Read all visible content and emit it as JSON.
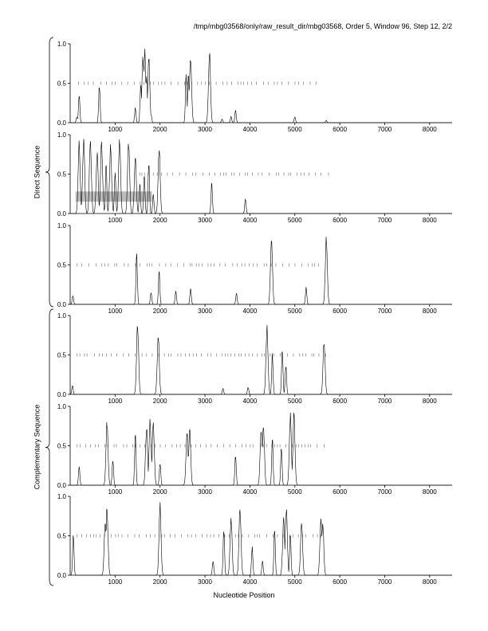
{
  "title": "/tmp/mbg03568/only/raw_result_dir/mbg03568, Order 5, Window 96, Step 12, 2/2",
  "xlabel": "Nucleotide Position",
  "group_labels": [
    "Direct Sequence",
    "Complementary Sequence"
  ],
  "chart_data": [
    {
      "type": "line",
      "panel": 1,
      "group": "Direct Sequence",
      "xlim": [
        0,
        8500
      ],
      "ylim": [
        0,
        1
      ],
      "xticks": [
        1000,
        2000,
        3000,
        4000,
        5000,
        6000,
        7000,
        8000
      ],
      "yticks": [
        "0.0",
        "0.5",
        "1.0"
      ],
      "peaks": [
        [
          150,
          0.08
        ],
        [
          200,
          0.38
        ],
        [
          650,
          0.5
        ],
        [
          1450,
          0.2
        ],
        [
          1570,
          0.55
        ],
        [
          1620,
          0.9
        ],
        [
          1660,
          0.95
        ],
        [
          1700,
          0.6
        ],
        [
          1750,
          0.85
        ],
        [
          1800,
          0.1
        ],
        [
          2580,
          0.65
        ],
        [
          2630,
          0.7
        ],
        [
          2680,
          0.9
        ],
        [
          3100,
          0.95
        ],
        [
          3380,
          0.05
        ],
        [
          3580,
          0.08
        ],
        [
          3680,
          0.16
        ],
        [
          5000,
          0.08
        ],
        [
          5700,
          0.03
        ]
      ],
      "marker_band": [
        [
          190,
          5500
        ]
      ],
      "marker_y": 0.5,
      "shaded_region": null
    },
    {
      "type": "line",
      "panel": 2,
      "group": "Direct Sequence",
      "xlim": [
        0,
        8500
      ],
      "ylim": [
        0,
        1
      ],
      "xticks": [
        1000,
        2000,
        3000,
        4000,
        5000,
        6000,
        7000,
        8000
      ],
      "yticks": [
        "0.0",
        "0.5",
        "1.0"
      ],
      "peaks": [
        [
          200,
          0.95
        ],
        [
          300,
          0.98
        ],
        [
          450,
          0.98
        ],
        [
          600,
          0.8
        ],
        [
          700,
          0.95
        ],
        [
          800,
          0.65
        ],
        [
          900,
          0.9
        ],
        [
          1000,
          0.55
        ],
        [
          1100,
          0.98
        ],
        [
          1300,
          0.98
        ],
        [
          1450,
          0.75
        ],
        [
          1550,
          0.4
        ],
        [
          1650,
          0.5
        ],
        [
          1750,
          0.7
        ],
        [
          1850,
          0.25
        ],
        [
          1980,
          0.88
        ],
        [
          3150,
          0.42
        ],
        [
          3900,
          0.2
        ]
      ],
      "marker_band": [
        [
          1550,
          5750
        ]
      ],
      "marker_y": 0.5,
      "shaded_region": [
        120,
        1820,
        0.15,
        0.28
      ]
    },
    {
      "type": "line",
      "panel": 3,
      "group": "Direct Sequence",
      "xlim": [
        0,
        8500
      ],
      "ylim": [
        0,
        1
      ],
      "xticks": [
        1000,
        2000,
        3000,
        4000,
        5000,
        6000,
        7000,
        8000
      ],
      "yticks": [
        "0.0",
        "0.5",
        "1.0"
      ],
      "peaks": [
        [
          60,
          0.12
        ],
        [
          1480,
          0.68
        ],
        [
          1800,
          0.16
        ],
        [
          1980,
          0.45
        ],
        [
          2350,
          0.18
        ],
        [
          2680,
          0.22
        ],
        [
          3700,
          0.15
        ],
        [
          4480,
          0.9
        ],
        [
          5250,
          0.22
        ],
        [
          5700,
          0.88
        ]
      ],
      "marker_band": [
        [
          150,
          5650
        ]
      ],
      "marker_y": 0.5,
      "shaded_region": null
    },
    {
      "type": "line",
      "panel": 4,
      "group": "Complementary Sequence",
      "xlim": [
        0,
        8500
      ],
      "ylim": [
        0,
        1
      ],
      "xticks": [
        1000,
        2000,
        3000,
        4000,
        5000,
        6000,
        7000,
        8000
      ],
      "yticks": [
        "0.0",
        "0.5",
        "1.0"
      ],
      "peaks": [
        [
          50,
          0.12
        ],
        [
          1500,
          0.95
        ],
        [
          1960,
          0.78
        ],
        [
          3400,
          0.08
        ],
        [
          3960,
          0.1
        ],
        [
          4380,
          0.9
        ],
        [
          4500,
          0.55
        ],
        [
          4720,
          0.6
        ],
        [
          4800,
          0.4
        ],
        [
          5650,
          0.72
        ]
      ],
      "marker_band": [
        [
          150,
          5750
        ]
      ],
      "marker_y": 0.5,
      "shaded_region": null
    },
    {
      "type": "line",
      "panel": 5,
      "group": "Complementary Sequence",
      "xlim": [
        0,
        8500
      ],
      "ylim": [
        0,
        1
      ],
      "xticks": [
        1000,
        2000,
        3000,
        4000,
        5000,
        6000,
        7000,
        8000
      ],
      "yticks": [
        "0.0",
        "0.5",
        "1.0"
      ],
      "peaks": [
        [
          200,
          0.25
        ],
        [
          820,
          0.85
        ],
        [
          950,
          0.35
        ],
        [
          1450,
          0.68
        ],
        [
          1700,
          0.78
        ],
        [
          1780,
          0.88
        ],
        [
          1850,
          0.82
        ],
        [
          2000,
          0.3
        ],
        [
          2600,
          0.72
        ],
        [
          2660,
          0.75
        ],
        [
          3680,
          0.4
        ],
        [
          4250,
          0.78
        ],
        [
          4300,
          0.86
        ],
        [
          4500,
          0.64
        ],
        [
          4700,
          0.52
        ],
        [
          4900,
          0.95
        ],
        [
          4980,
          0.97
        ]
      ],
      "marker_band": [
        [
          150,
          5750
        ]
      ],
      "marker_y": 0.5,
      "shaded_region": null
    },
    {
      "type": "line",
      "panel": 6,
      "group": "Complementary Sequence",
      "xlim": [
        0,
        8500
      ],
      "ylim": [
        0,
        1
      ],
      "xticks": [
        1000,
        2000,
        3000,
        4000,
        5000,
        6000,
        7000,
        8000
      ],
      "yticks": [
        "0.0",
        "0.5",
        "1.0"
      ],
      "peaks": [
        [
          70,
          0.55
        ],
        [
          780,
          0.72
        ],
        [
          820,
          0.9
        ],
        [
          2000,
          0.95
        ],
        [
          3180,
          0.2
        ],
        [
          3420,
          0.65
        ],
        [
          3580,
          0.78
        ],
        [
          3780,
          0.92
        ],
        [
          4050,
          0.38
        ],
        [
          4280,
          0.2
        ],
        [
          4550,
          0.6
        ],
        [
          4750,
          0.75
        ],
        [
          4810,
          0.9
        ],
        [
          4900,
          0.55
        ],
        [
          5150,
          0.72
        ],
        [
          5580,
          0.78
        ],
        [
          5620,
          0.72
        ]
      ],
      "marker_band": [
        [
          150,
          5600
        ]
      ],
      "marker_y": 0.5,
      "shaded_region": null
    }
  ]
}
